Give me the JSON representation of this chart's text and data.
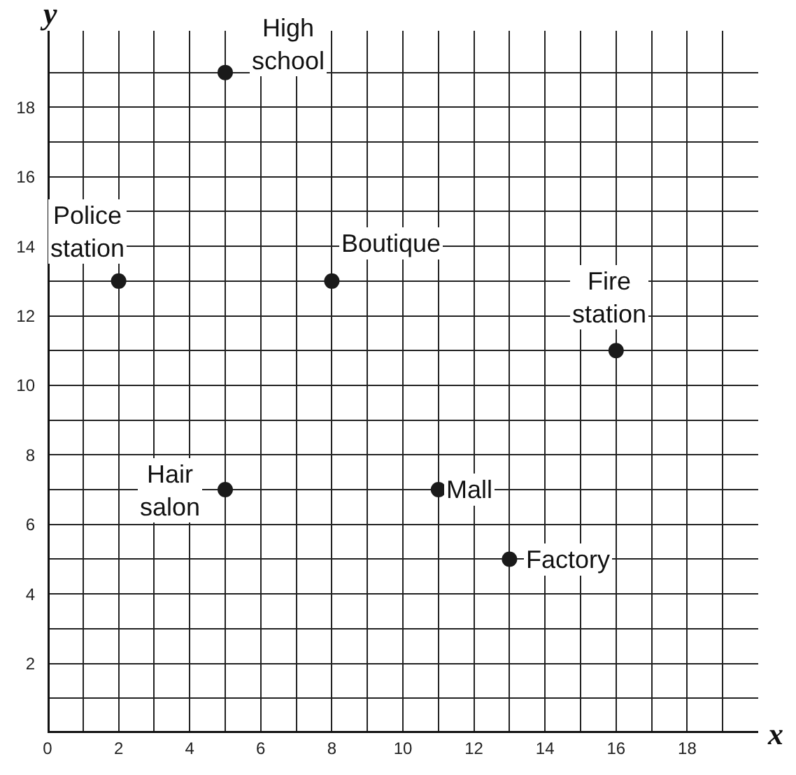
{
  "chart_data": {
    "type": "scatter",
    "xlabel": "x",
    "ylabel": "y",
    "x": [
      2,
      5,
      8,
      16,
      5,
      11,
      13
    ],
    "values": [
      13,
      19,
      13,
      11,
      7,
      7,
      5
    ],
    "color": "#1a1a1a",
    "marker": "circle",
    "grid": true,
    "xlim": [
      0,
      20
    ],
    "ylim": [
      0,
      20.2
    ],
    "xticks": [
      0,
      {
        "value": 1,
        "label": null
      },
      2,
      {
        "value": 3,
        "label": null
      },
      4,
      {
        "value": 5,
        "label": null
      },
      6,
      {
        "value": 7,
        "label": null
      },
      8,
      {
        "value": 9,
        "label": null
      },
      10,
      {
        "value": 11,
        "label": null
      },
      12,
      {
        "value": 13,
        "label": null
      },
      14,
      {
        "value": 15,
        "label": null
      },
      16,
      {
        "value": 17,
        "label": null
      },
      18,
      {
        "value": 19,
        "label": null
      }
    ],
    "yticks": [
      {
        "value": 0,
        "label": null
      },
      {
        "value": 1,
        "label": null
      },
      2,
      {
        "value": 3,
        "label": null
      },
      4,
      {
        "value": 5,
        "label": null
      },
      6,
      {
        "value": 7,
        "label": null
      },
      8,
      {
        "value": 9,
        "label": null
      },
      10,
      {
        "value": 11,
        "label": null
      },
      12,
      {
        "value": 13,
        "label": null
      },
      14,
      {
        "value": 15,
        "label": null
      },
      16,
      {
        "value": 17,
        "label": null
      },
      18,
      {
        "value": 19,
        "label": null
      }
    ],
    "annotations": [
      {
        "text": "Police\nstation",
        "x": 2,
        "y": 13
      },
      {
        "text": "High\nschool",
        "x": 5,
        "y": 19
      },
      {
        "text": "Boutique",
        "x": 8,
        "y": 13
      },
      {
        "text": "Fire\nstation",
        "x": 16,
        "y": 11
      },
      {
        "text": "Hair\nsalon",
        "x": 5,
        "y": 7
      },
      {
        "text": "Mall",
        "x": 11,
        "y": 7
      },
      {
        "text": "Factory",
        "x": 13,
        "y": 5
      }
    ]
  }
}
